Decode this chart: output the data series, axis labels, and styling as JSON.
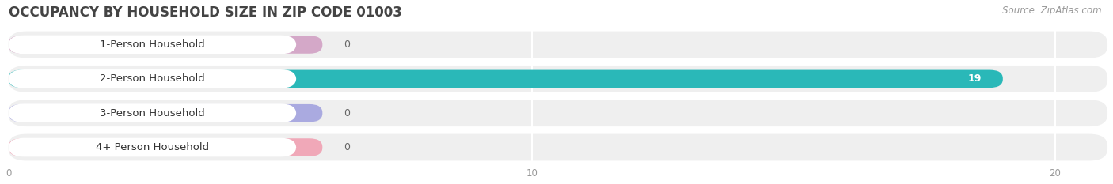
{
  "title": "OCCUPANCY BY HOUSEHOLD SIZE IN ZIP CODE 01003",
  "source": "Source: ZipAtlas.com",
  "categories": [
    "1-Person Household",
    "2-Person Household",
    "3-Person Household",
    "4+ Person Household"
  ],
  "values": [
    0,
    19,
    0,
    0
  ],
  "bar_colors": [
    "#d4a8c8",
    "#2ab8b8",
    "#aaaae0",
    "#f0a8b8"
  ],
  "label_pill_colors": [
    "#e8d0e8",
    "#cce8e8",
    "#d0d0f0",
    "#f8d0dc"
  ],
  "row_bg_color": "#efefef",
  "xlim_max": 21,
  "xticks": [
    0,
    10,
    20
  ],
  "bar_height": 0.52,
  "title_fontsize": 12,
  "source_fontsize": 8.5,
  "label_fontsize": 9.5,
  "value_fontsize": 9
}
